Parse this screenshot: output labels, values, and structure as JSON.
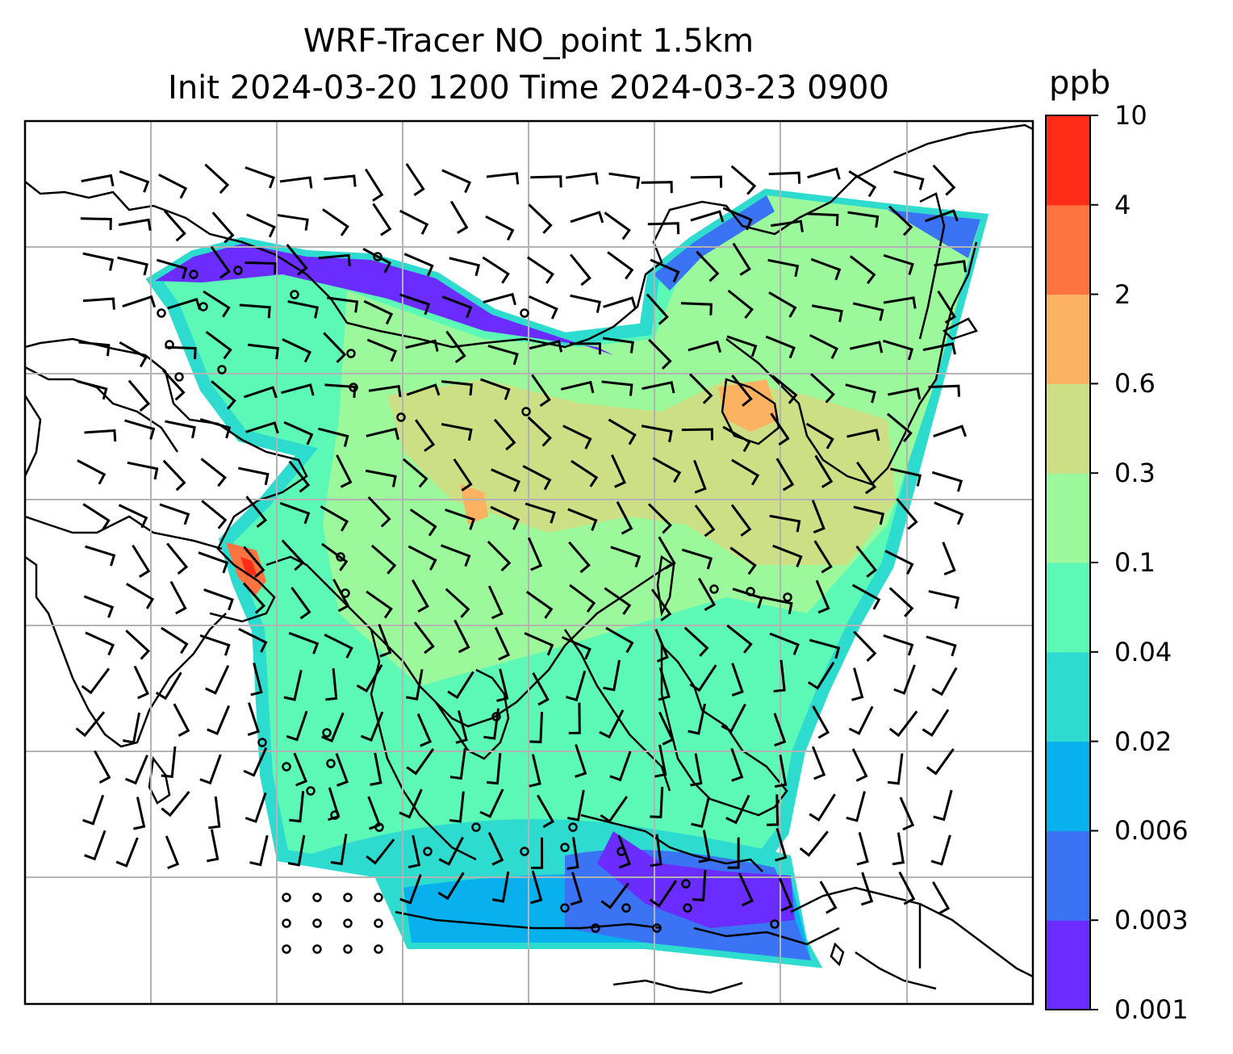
{
  "figure": {
    "title_line1": "WRF-Tracer NO_point 1.5km",
    "title_line2": "Init 2024-03-20 1200 Time 2024-03-23 0900"
  },
  "colorbar": {
    "unit": "ppb",
    "levels": [
      "0.001",
      "0.003",
      "0.006",
      "0.02",
      "0.04",
      "0.1",
      "0.3",
      "0.6",
      "2",
      "4",
      "10"
    ],
    "colors": [
      "#6a2cff",
      "#3b73f5",
      "#08b1ee",
      "#2ddccf",
      "#5cf8b5",
      "#9bf99b",
      "#cddf85",
      "#fcb260",
      "#ff7341",
      "#ff2d18"
    ]
  },
  "map": {
    "coastline_color": "#000000",
    "gridline_color": "#b3b3b3",
    "wind_barb_color": "#000000",
    "field_variable": "NO tracer concentration"
  }
}
